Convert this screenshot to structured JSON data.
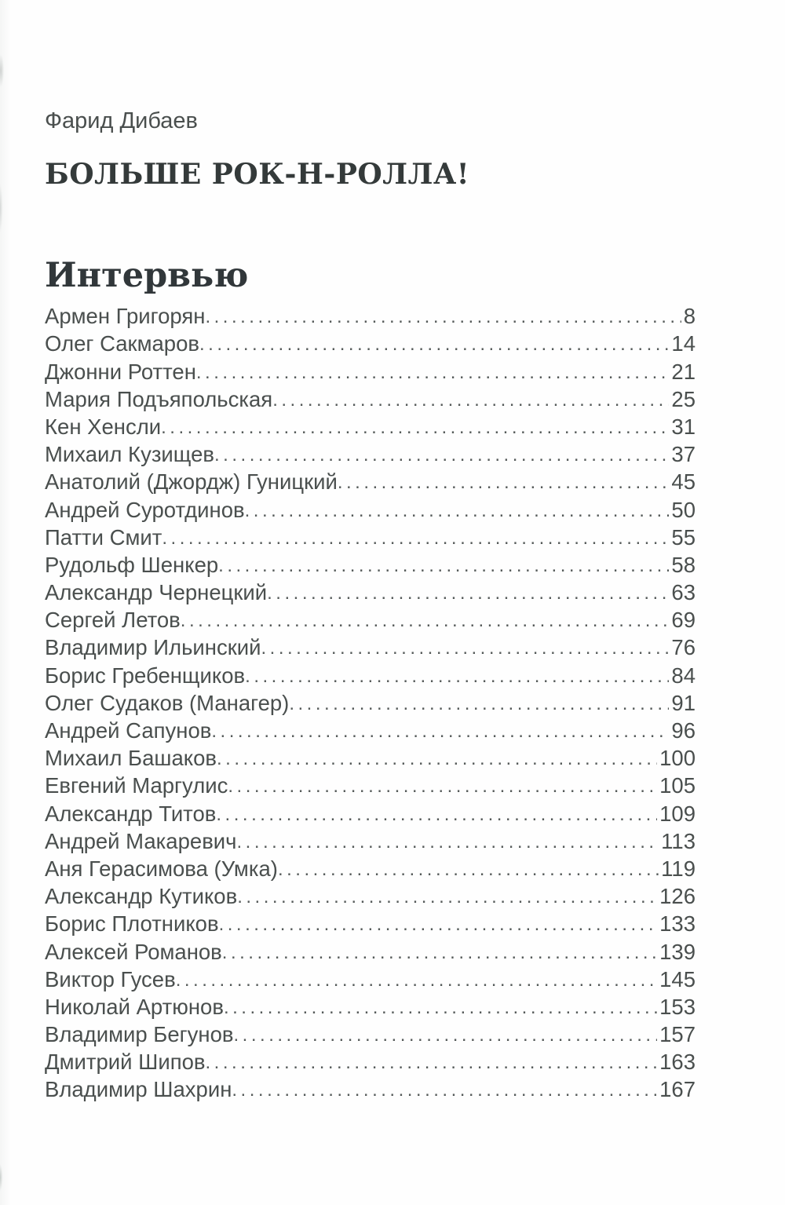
{
  "page": {
    "author": "Фарид Дибаев",
    "book_title": "БОЛЬШЕ РОК-Н-РОЛЛА!",
    "section_title": "Интервью",
    "toc": [
      {
        "name": "Армен Григорян",
        "page": "8"
      },
      {
        "name": "Олег Сакмаров",
        "page": "14"
      },
      {
        "name": "Джонни Роттен",
        "page": "21"
      },
      {
        "name": "Мария Подъяпольская",
        "page": "25"
      },
      {
        "name": "Кен Хенсли",
        "page": "31"
      },
      {
        "name": "Михаил Кузищев",
        "page": "37"
      },
      {
        "name": "Анатолий (Джордж) Гуницкий",
        "page": "45"
      },
      {
        "name": "Андрей Суротдинов",
        "page": "50"
      },
      {
        "name": "Патти Смит",
        "page": "55"
      },
      {
        "name": "Рудольф Шенкер",
        "page": "58"
      },
      {
        "name": "Александр Чернецкий",
        "page": "63"
      },
      {
        "name": "Сергей Летов",
        "page": "69"
      },
      {
        "name": "Владимир Ильинский",
        "page": "76"
      },
      {
        "name": "Борис Гребенщиков",
        "page": "84"
      },
      {
        "name": "Олег Судаков (Манагер)",
        "page": "91"
      },
      {
        "name": "Андрей Сапунов",
        "page": "96"
      },
      {
        "name": "Михаил Башаков",
        "page": "100"
      },
      {
        "name": "Евгений Маргулис",
        "page": "105"
      },
      {
        "name": "Александр Титов",
        "page": "109"
      },
      {
        "name": "Андрей Макаревич",
        "page": "113"
      },
      {
        "name": "Аня Герасимова (Умка)",
        "page": "119"
      },
      {
        "name": "Александр Кутиков",
        "page": "126"
      },
      {
        "name": "Борис Плотников",
        "page": "133"
      },
      {
        "name": "Алексей Романов",
        "page": "139"
      },
      {
        "name": "Виктор Гусев",
        "page": "145"
      },
      {
        "name": "Николай Артюнов",
        "page": "153"
      },
      {
        "name": "Владимир Бегунов",
        "page": "157"
      },
      {
        "name": "Дмитрий Шипов",
        "page": "163"
      },
      {
        "name": "Владимир Шахрин",
        "page": "167"
      }
    ],
    "colors": {
      "text": "#4a4f4e",
      "heading": "#31373a",
      "background": "#fefefe"
    }
  }
}
